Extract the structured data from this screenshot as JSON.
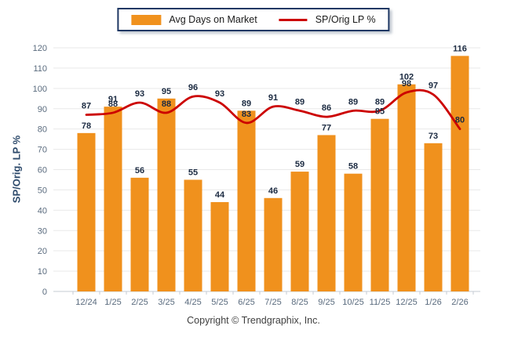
{
  "legend": {
    "bar_label": "Avg Days on Market",
    "line_label": "SP/Orig LP %"
  },
  "footer": {
    "copyright": "Copyright © Trendgraphix, Inc."
  },
  "chart_data": {
    "type": "bar",
    "subtype": "bar+line combo",
    "categories": [
      "12/24",
      "1/25",
      "2/25",
      "3/25",
      "4/25",
      "5/25",
      "6/25",
      "7/25",
      "8/25",
      "9/25",
      "10/25",
      "11/25",
      "12/25",
      "1/26",
      "2/26"
    ],
    "series": [
      {
        "name": "Avg Days on Market",
        "type": "bar",
        "color": "#F0911D",
        "values": [
          78,
          91,
          56,
          95,
          55,
          44,
          89,
          46,
          59,
          77,
          58,
          85,
          102,
          73,
          116
        ]
      },
      {
        "name": "SP/Orig LP %",
        "type": "line",
        "color": "#CC0000",
        "values": [
          87,
          88,
          93,
          88,
          96,
          93,
          83,
          91,
          89,
          86,
          89,
          89,
          98,
          97,
          80
        ]
      }
    ],
    "title": "",
    "xlabel": "",
    "ylabel": "SP/Orig. LP %",
    "ylim": [
      0,
      120
    ],
    "ytick_step": 10,
    "grid": "horizontal",
    "legend_position": "top-center",
    "data_labels": true,
    "colors": {
      "bar": "#F0911D",
      "line": "#CC0000",
      "data_label": "#1B2A41",
      "tick_label": "#5A6B7E",
      "gridline": "#E9E9E9",
      "axis_line": "#C5CBD3",
      "legend_border": "#1F3864"
    }
  }
}
